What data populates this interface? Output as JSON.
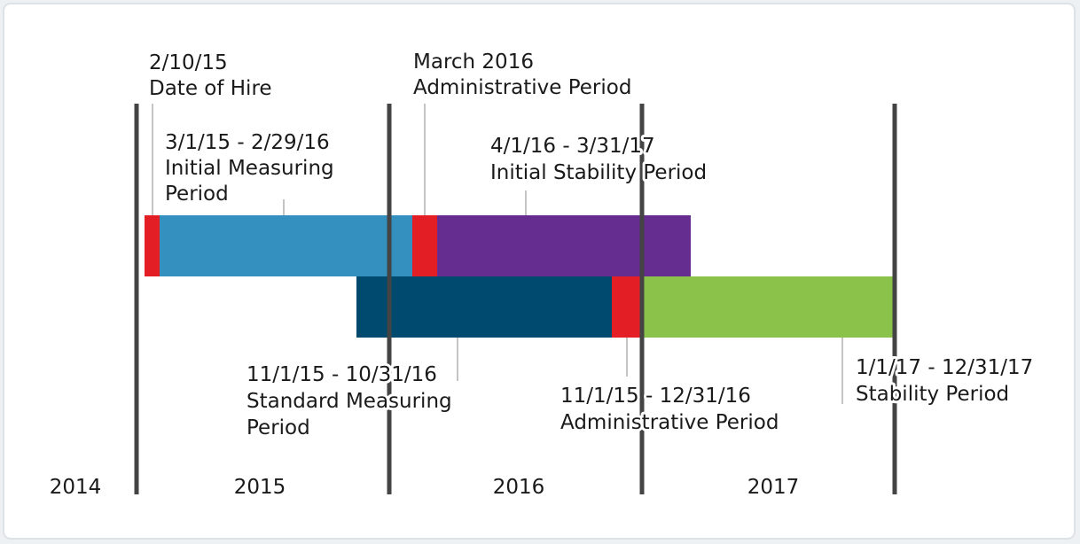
{
  "annotations": [
    {
      "lines": [
        "2/10/15",
        "Date of Hire"
      ]
    },
    {
      "lines": [
        "3/1/15 - 2/29/16",
        "Initial Measuring",
        "Period"
      ]
    },
    {
      "lines": [
        "March 2016",
        "Administrative Period"
      ]
    },
    {
      "lines": [
        "4/1/16 - 3/31/17",
        "Initial Stability Period"
      ]
    },
    {
      "lines": [
        "11/1/15 - 10/31/16",
        "Standard Measuring",
        "Period"
      ]
    },
    {
      "lines": [
        "11/1/15 - 12/31/16",
        "Administrative Period"
      ]
    },
    {
      "lines": [
        "1/1/17 - 12/31/17",
        "Stability Period"
      ]
    }
  ],
  "years": [
    "2014",
    "2015",
    "2016",
    "2017"
  ]
}
